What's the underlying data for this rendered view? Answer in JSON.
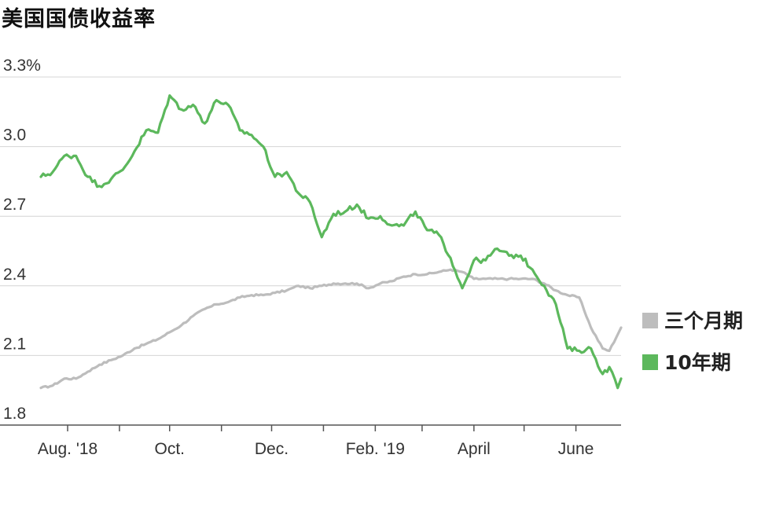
{
  "chart_data": {
    "type": "line",
    "title": "美国国债收益率",
    "y_unit": "%",
    "ylim": [
      1.8,
      3.3
    ],
    "yticks": [
      {
        "value": 3.3,
        "label": "3.3%"
      },
      {
        "value": 3.0,
        "label": "3.0"
      },
      {
        "value": 2.7,
        "label": "2.7"
      },
      {
        "value": 2.4,
        "label": "2.4"
      },
      {
        "value": 2.1,
        "label": "2.1"
      },
      {
        "value": 1.8,
        "label": "1.8"
      }
    ],
    "xlim": [
      "2018-07-16",
      "2019-06-28"
    ],
    "xticks": [
      {
        "date": "2018-08-01",
        "label": "Aug. '18"
      },
      {
        "date": "2018-09-01",
        "label": ""
      },
      {
        "date": "2018-10-01",
        "label": "Oct."
      },
      {
        "date": "2018-11-01",
        "label": ""
      },
      {
        "date": "2018-12-01",
        "label": "Dec."
      },
      {
        "date": "2019-01-01",
        "label": ""
      },
      {
        "date": "2019-02-01",
        "label": "Feb. '19"
      },
      {
        "date": "2019-03-01",
        "label": ""
      },
      {
        "date": "2019-04-01",
        "label": "April"
      },
      {
        "date": "2019-05-01",
        "label": ""
      },
      {
        "date": "2019-06-01",
        "label": "June"
      },
      {
        "date": "2019-07-01",
        "label": ""
      }
    ],
    "grid": "horizontal",
    "legend_position": "right",
    "series": [
      {
        "name": "三个月期",
        "color": "#bdbdbd",
        "points": [
          [
            "2018-07-16",
            1.96
          ],
          [
            "2018-07-23",
            1.97
          ],
          [
            "2018-07-30",
            2.0
          ],
          [
            "2018-08-06",
            2.0
          ],
          [
            "2018-08-13",
            2.03
          ],
          [
            "2018-08-20",
            2.06
          ],
          [
            "2018-08-27",
            2.08
          ],
          [
            "2018-09-03",
            2.1
          ],
          [
            "2018-09-10",
            2.13
          ],
          [
            "2018-09-17",
            2.15
          ],
          [
            "2018-09-24",
            2.17
          ],
          [
            "2018-10-01",
            2.2
          ],
          [
            "2018-10-08",
            2.23
          ],
          [
            "2018-10-15",
            2.27
          ],
          [
            "2018-10-22",
            2.3
          ],
          [
            "2018-10-29",
            2.32
          ],
          [
            "2018-11-05",
            2.33
          ],
          [
            "2018-11-12",
            2.35
          ],
          [
            "2018-11-19",
            2.36
          ],
          [
            "2018-11-26",
            2.36
          ],
          [
            "2018-12-03",
            2.37
          ],
          [
            "2018-12-10",
            2.38
          ],
          [
            "2018-12-17",
            2.4
          ],
          [
            "2018-12-24",
            2.39
          ],
          [
            "2018-12-31",
            2.4
          ],
          [
            "2019-01-07",
            2.41
          ],
          [
            "2019-01-14",
            2.41
          ],
          [
            "2019-01-21",
            2.41
          ],
          [
            "2019-01-28",
            2.39
          ],
          [
            "2019-02-04",
            2.41
          ],
          [
            "2019-02-11",
            2.42
          ],
          [
            "2019-02-18",
            2.44
          ],
          [
            "2019-02-25",
            2.45
          ],
          [
            "2019-03-04",
            2.45
          ],
          [
            "2019-03-11",
            2.46
          ],
          [
            "2019-03-18",
            2.47
          ],
          [
            "2019-03-25",
            2.46
          ],
          [
            "2019-04-01",
            2.43
          ],
          [
            "2019-04-08",
            2.43
          ],
          [
            "2019-04-15",
            2.43
          ],
          [
            "2019-04-22",
            2.43
          ],
          [
            "2019-04-29",
            2.43
          ],
          [
            "2019-05-06",
            2.43
          ],
          [
            "2019-05-13",
            2.41
          ],
          [
            "2019-05-20",
            2.38
          ],
          [
            "2019-05-27",
            2.36
          ],
          [
            "2019-06-03",
            2.35
          ],
          [
            "2019-06-10",
            2.22
          ],
          [
            "2019-06-17",
            2.13
          ],
          [
            "2019-06-21",
            2.12
          ],
          [
            "2019-06-28",
            2.22
          ]
        ]
      },
      {
        "name": "10年期",
        "color": "#5cb85c",
        "points": [
          [
            "2018-07-16",
            2.87
          ],
          [
            "2018-07-23",
            2.89
          ],
          [
            "2018-07-30",
            2.96
          ],
          [
            "2018-08-06",
            2.96
          ],
          [
            "2018-08-13",
            2.87
          ],
          [
            "2018-08-20",
            2.83
          ],
          [
            "2018-08-27",
            2.86
          ],
          [
            "2018-09-03",
            2.9
          ],
          [
            "2018-09-10",
            2.98
          ],
          [
            "2018-09-17",
            3.07
          ],
          [
            "2018-09-24",
            3.06
          ],
          [
            "2018-10-01",
            3.22
          ],
          [
            "2018-10-08",
            3.16
          ],
          [
            "2018-10-15",
            3.18
          ],
          [
            "2018-10-22",
            3.1
          ],
          [
            "2018-10-29",
            3.2
          ],
          [
            "2018-11-05",
            3.18
          ],
          [
            "2018-11-12",
            3.07
          ],
          [
            "2018-11-19",
            3.05
          ],
          [
            "2018-11-26",
            3.0
          ],
          [
            "2018-12-03",
            2.87
          ],
          [
            "2018-12-10",
            2.89
          ],
          [
            "2018-12-17",
            2.8
          ],
          [
            "2018-12-24",
            2.76
          ],
          [
            "2018-12-31",
            2.61
          ],
          [
            "2019-01-07",
            2.71
          ],
          [
            "2019-01-14",
            2.72
          ],
          [
            "2019-01-21",
            2.75
          ],
          [
            "2019-01-28",
            2.69
          ],
          [
            "2019-02-04",
            2.7
          ],
          [
            "2019-02-11",
            2.66
          ],
          [
            "2019-02-18",
            2.66
          ],
          [
            "2019-02-25",
            2.72
          ],
          [
            "2019-03-04",
            2.64
          ],
          [
            "2019-03-11",
            2.62
          ],
          [
            "2019-03-18",
            2.52
          ],
          [
            "2019-03-25",
            2.39
          ],
          [
            "2019-04-01",
            2.51
          ],
          [
            "2019-04-08",
            2.51
          ],
          [
            "2019-04-15",
            2.56
          ],
          [
            "2019-04-22",
            2.53
          ],
          [
            "2019-04-29",
            2.53
          ],
          [
            "2019-05-06",
            2.47
          ],
          [
            "2019-05-13",
            2.4
          ],
          [
            "2019-05-20",
            2.32
          ],
          [
            "2019-05-27",
            2.13
          ],
          [
            "2019-06-03",
            2.12
          ],
          [
            "2019-06-10",
            2.13
          ],
          [
            "2019-06-17",
            2.02
          ],
          [
            "2019-06-21",
            2.05
          ],
          [
            "2019-06-26",
            1.96
          ],
          [
            "2019-06-28",
            2.0
          ]
        ]
      }
    ]
  }
}
